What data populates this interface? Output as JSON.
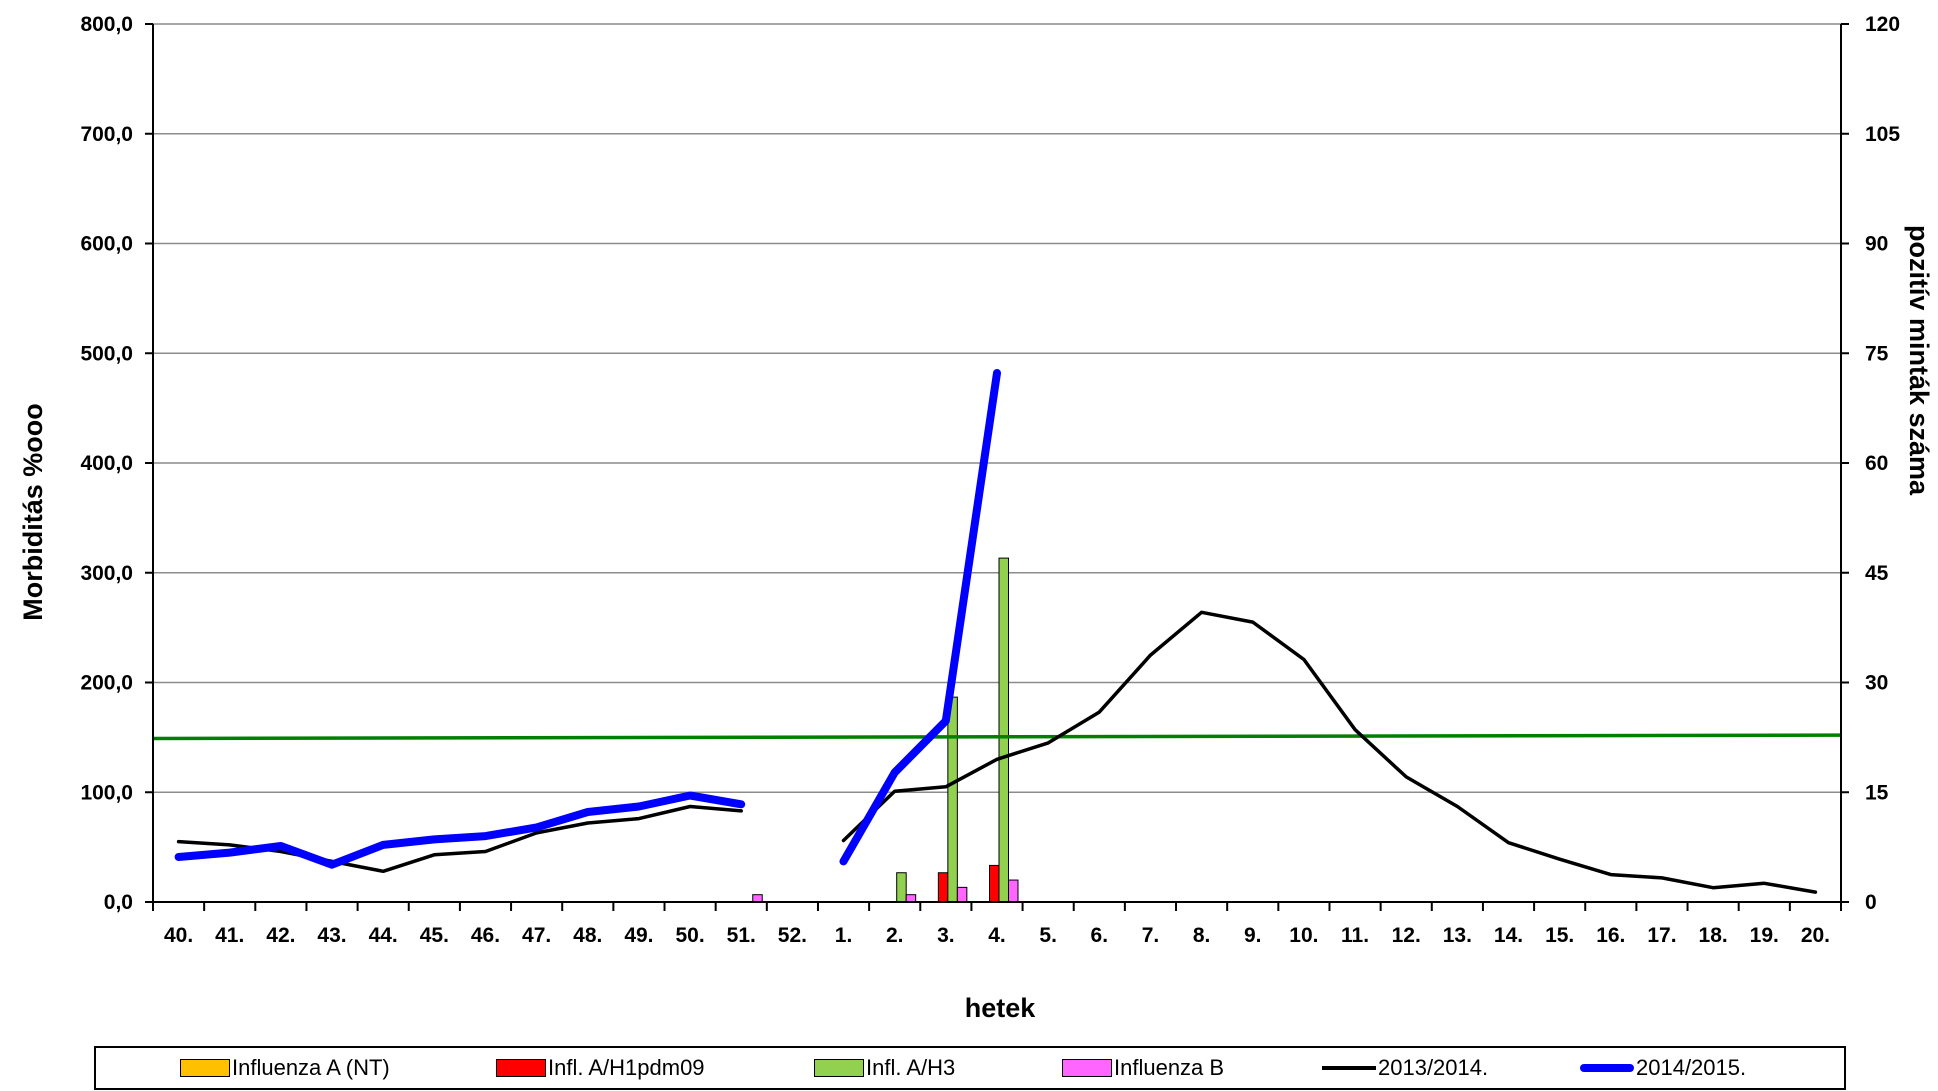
{
  "chart_data": {
    "type": "bar+line",
    "xlabel": "hetek",
    "ylabel_left": "Morbiditás %ooo",
    "ylabel_right": "pozitív minták száma",
    "ylim_left": [
      0,
      800
    ],
    "ylim_right": [
      0,
      120
    ],
    "yticks_left": [
      "0,0",
      "100,0",
      "200,0",
      "300,0",
      "400,0",
      "500,0",
      "600,0",
      "700,0",
      "800,0"
    ],
    "yticks_right": [
      "0",
      "15",
      "30",
      "45",
      "60",
      "75",
      "90",
      "105",
      "120"
    ],
    "grid": "horizontal",
    "legend_position": "bottom",
    "categories": [
      "40.",
      "41.",
      "42.",
      "43.",
      "44.",
      "45.",
      "46.",
      "47.",
      "48.",
      "49.",
      "50.",
      "51.",
      "52.",
      "1.",
      "2.",
      "3.",
      "4.",
      "5.",
      "6.",
      "7.",
      "8.",
      "9.",
      "10.",
      "11.",
      "12.",
      "13.",
      "14.",
      "15.",
      "16.",
      "17.",
      "18.",
      "19.",
      "20."
    ],
    "bar_series": [
      {
        "name": "Influenza A (NT)",
        "color": "#FFC000",
        "axis": "right",
        "values": [
          0,
          0,
          0,
          0,
          0,
          0,
          0,
          0,
          0,
          0,
          0,
          0,
          0,
          0,
          0,
          0,
          0,
          0,
          0,
          0,
          0,
          0,
          0,
          0,
          0,
          0,
          0,
          0,
          0,
          0,
          0,
          0,
          0
        ]
      },
      {
        "name": "Infl. A/H1pdm09",
        "color": "#FF0000",
        "axis": "right",
        "values": [
          0,
          0,
          0,
          0,
          0,
          0,
          0,
          0,
          0,
          0,
          0,
          0,
          0,
          0,
          0,
          4,
          5,
          0,
          0,
          0,
          0,
          0,
          0,
          0,
          0,
          0,
          0,
          0,
          0,
          0,
          0,
          0,
          0
        ]
      },
      {
        "name": "Infl. A/H3",
        "color": "#92D050",
        "axis": "right",
        "values": [
          0,
          0,
          0,
          0,
          0,
          0,
          0,
          0,
          0,
          0,
          0,
          0,
          0,
          0,
          4,
          28,
          47,
          0,
          0,
          0,
          0,
          0,
          0,
          0,
          0,
          0,
          0,
          0,
          0,
          0,
          0,
          0,
          0
        ]
      },
      {
        "name": "Influenza B",
        "color": "#FF66FF",
        "axis": "right",
        "values": [
          0,
          0,
          0,
          0,
          0,
          0,
          0,
          0,
          0,
          0,
          0,
          1,
          0,
          0,
          1,
          2,
          3,
          0,
          0,
          0,
          0,
          0,
          0,
          0,
          0,
          0,
          0,
          0,
          0,
          0,
          0,
          0,
          0
        ]
      }
    ],
    "line_series": [
      {
        "name": "2013/2014.",
        "color": "#000000",
        "axis": "left",
        "width": 3.5,
        "values": [
          55,
          52,
          46,
          37,
          28,
          43,
          46,
          63,
          72,
          76,
          87,
          83,
          null,
          56,
          101,
          105,
          130,
          145,
          173,
          225,
          264,
          255,
          221,
          157,
          114,
          87,
          54,
          39,
          25,
          22,
          13,
          17,
          9
        ]
      },
      {
        "name": "2014/2015.",
        "color": "#0000FF",
        "axis": "left",
        "width": 8,
        "values": [
          41,
          45,
          51,
          34,
          52,
          57,
          60,
          68,
          82,
          87,
          97,
          89,
          null,
          37,
          118,
          165,
          482,
          null,
          null,
          null,
          null,
          null,
          null,
          null,
          null,
          null,
          null,
          null,
          null,
          null,
          null,
          null,
          null
        ]
      }
    ],
    "threshold_line": {
      "color": "#008000",
      "axis": "left",
      "values": [
        149,
        152
      ]
    }
  }
}
